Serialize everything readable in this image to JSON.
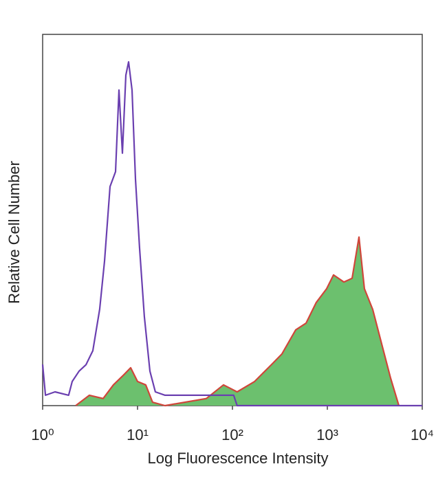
{
  "chart_data": {
    "type": "histogram-overlay",
    "xlabel": "Log Fluorescence Intensity",
    "ylabel": "Relative Cell Number",
    "xscale": "log",
    "xlim": [
      1,
      10000
    ],
    "ylim": [
      0,
      100
    ],
    "xticks": [
      {
        "value": 1,
        "label": "10⁰"
      },
      {
        "value": 10,
        "label": "10¹"
      },
      {
        "value": 100,
        "label": "10²"
      },
      {
        "value": 1000,
        "label": "10³"
      },
      {
        "value": 10000,
        "label": "10⁴"
      }
    ],
    "series": [
      {
        "color": "#d0453a",
        "fill": "#6cc06e",
        "x": [
          2.23,
          3.11,
          4.34,
          5.57,
          7.16,
          8.47,
          10,
          12.2,
          14.4,
          19.5,
          53,
          80.5,
          112,
          171,
          259,
          332,
          464,
          596,
          765,
          984,
          1162,
          1493,
          1824,
          2153,
          2460,
          3006,
          3733,
          4642,
          5673
        ],
        "values": [
          0,
          2.8,
          1.9,
          5.6,
          8.3,
          10.2,
          6.5,
          5.6,
          0.9,
          0,
          1.9,
          5.6,
          3.7,
          6.5,
          11.1,
          13.9,
          20.4,
          22.2,
          27.8,
          31.5,
          35.2,
          33.3,
          34.3,
          45.4,
          31.5,
          25.9,
          16.7,
          7.4,
          0
        ]
      },
      {
        "color": "#6a3fb0",
        "x": [
          1,
          1.07,
          1.35,
          1.88,
          2.05,
          2.42,
          2.86,
          3.38,
          3.99,
          4.49,
          5.13,
          5.86,
          6.37,
          6.93,
          7.53,
          8.05,
          8.75,
          9.51,
          10.5,
          11.8,
          13.5,
          15.4,
          19.5,
          53,
          103,
          112,
          10000
        ],
        "values": [
          11.1,
          2.8,
          3.7,
          2.8,
          6.5,
          9.3,
          11,
          14.8,
          25.9,
          38.9,
          59,
          63,
          85,
          68,
          89,
          92.6,
          85,
          61,
          42.6,
          24,
          9.3,
          3.7,
          2.8,
          2.8,
          2.8,
          0,
          0
        ]
      }
    ]
  }
}
